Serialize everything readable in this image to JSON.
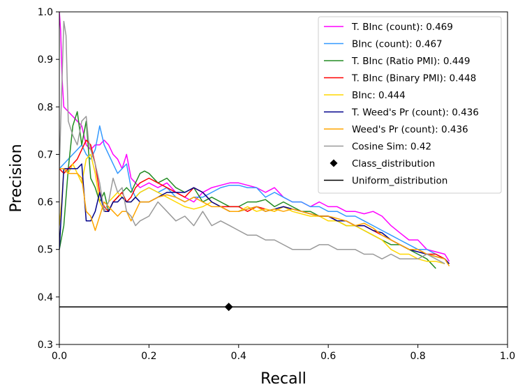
{
  "chart_data": {
    "type": "line",
    "title": "",
    "xlabel": "Recall",
    "ylabel": "Precision",
    "xlim": [
      0.0,
      1.0
    ],
    "ylim": [
      0.3,
      1.0
    ],
    "xticks": [
      "0.0",
      "0.2",
      "0.4",
      "0.6",
      "0.8",
      "1.0"
    ],
    "yticks": [
      "0.3",
      "0.4",
      "0.5",
      "0.6",
      "0.7",
      "0.8",
      "0.9",
      "1.0"
    ],
    "grid": false,
    "legend_position": "top-right",
    "series": [
      {
        "name": "T. BInc (count): 0.469",
        "color": "#ff00ff",
        "x": [
          0.0,
          0.003,
          0.006,
          0.01,
          0.02,
          0.03,
          0.04,
          0.05,
          0.06,
          0.07,
          0.08,
          0.09,
          0.1,
          0.11,
          0.12,
          0.13,
          0.14,
          0.15,
          0.16,
          0.17,
          0.18,
          0.2,
          0.22,
          0.24,
          0.26,
          0.28,
          0.3,
          0.32,
          0.34,
          0.36,
          0.38,
          0.4,
          0.42,
          0.44,
          0.46,
          0.48,
          0.5,
          0.52,
          0.54,
          0.56,
          0.58,
          0.6,
          0.62,
          0.64,
          0.66,
          0.68,
          0.7,
          0.72,
          0.74,
          0.76,
          0.78,
          0.8,
          0.82,
          0.84,
          0.86,
          0.87
        ],
        "y": [
          1.0,
          0.96,
          0.86,
          0.8,
          0.79,
          0.78,
          0.77,
          0.76,
          0.72,
          0.71,
          0.72,
          0.72,
          0.73,
          0.72,
          0.7,
          0.69,
          0.67,
          0.7,
          0.65,
          0.64,
          0.63,
          0.64,
          0.63,
          0.64,
          0.62,
          0.61,
          0.6,
          0.62,
          0.63,
          0.635,
          0.64,
          0.64,
          0.635,
          0.63,
          0.62,
          0.63,
          0.61,
          0.6,
          0.6,
          0.59,
          0.6,
          0.59,
          0.59,
          0.58,
          0.58,
          0.575,
          0.58,
          0.57,
          0.55,
          0.535,
          0.52,
          0.52,
          0.5,
          0.495,
          0.49,
          0.475
        ]
      },
      {
        "name": "BInc (count): 0.467",
        "color": "#3399ff",
        "x": [
          0.0,
          0.01,
          0.02,
          0.03,
          0.04,
          0.05,
          0.06,
          0.07,
          0.08,
          0.09,
          0.1,
          0.11,
          0.12,
          0.13,
          0.14,
          0.15,
          0.16,
          0.17,
          0.18,
          0.2,
          0.22,
          0.24,
          0.26,
          0.28,
          0.3,
          0.32,
          0.34,
          0.36,
          0.38,
          0.4,
          0.42,
          0.44,
          0.46,
          0.48,
          0.5,
          0.52,
          0.54,
          0.56,
          0.58,
          0.6,
          0.62,
          0.64,
          0.66,
          0.68,
          0.7,
          0.72,
          0.74,
          0.76,
          0.78,
          0.8,
          0.82,
          0.84,
          0.86,
          0.87
        ],
        "y": [
          0.67,
          0.68,
          0.69,
          0.7,
          0.71,
          0.72,
          0.7,
          0.69,
          0.71,
          0.76,
          0.72,
          0.7,
          0.68,
          0.66,
          0.67,
          0.68,
          0.63,
          0.61,
          0.62,
          0.63,
          0.62,
          0.63,
          0.61,
          0.6,
          0.61,
          0.61,
          0.62,
          0.63,
          0.635,
          0.635,
          0.63,
          0.63,
          0.61,
          0.62,
          0.61,
          0.6,
          0.6,
          0.59,
          0.59,
          0.58,
          0.58,
          0.57,
          0.57,
          0.56,
          0.55,
          0.54,
          0.53,
          0.52,
          0.51,
          0.5,
          0.5,
          0.49,
          0.48,
          0.47
        ]
      },
      {
        "name": "T. BInc (Ratio PMI): 0.449",
        "color": "#228b22",
        "x": [
          0.0,
          0.01,
          0.02,
          0.03,
          0.04,
          0.05,
          0.06,
          0.07,
          0.08,
          0.09,
          0.1,
          0.11,
          0.12,
          0.13,
          0.14,
          0.15,
          0.16,
          0.17,
          0.18,
          0.19,
          0.2,
          0.22,
          0.24,
          0.26,
          0.28,
          0.3,
          0.32,
          0.34,
          0.36,
          0.38,
          0.4,
          0.42,
          0.44,
          0.46,
          0.48,
          0.5,
          0.52,
          0.54,
          0.56,
          0.58,
          0.6,
          0.62,
          0.64,
          0.66,
          0.68,
          0.7,
          0.72,
          0.74,
          0.76,
          0.78,
          0.8,
          0.82,
          0.83,
          0.84
        ],
        "y": [
          0.5,
          0.55,
          0.67,
          0.76,
          0.79,
          0.72,
          0.77,
          0.65,
          0.63,
          0.6,
          0.62,
          0.58,
          0.6,
          0.61,
          0.62,
          0.63,
          0.62,
          0.64,
          0.66,
          0.665,
          0.66,
          0.64,
          0.65,
          0.63,
          0.62,
          0.63,
          0.6,
          0.61,
          0.6,
          0.59,
          0.59,
          0.6,
          0.6,
          0.605,
          0.59,
          0.6,
          0.59,
          0.58,
          0.58,
          0.57,
          0.57,
          0.56,
          0.55,
          0.55,
          0.54,
          0.53,
          0.52,
          0.51,
          0.51,
          0.5,
          0.49,
          0.48,
          0.47,
          0.46
        ]
      },
      {
        "name": "T. BInc (Binary PMI): 0.448",
        "color": "#ff0000",
        "x": [
          0.0,
          0.01,
          0.02,
          0.03,
          0.04,
          0.05,
          0.06,
          0.07,
          0.08,
          0.09,
          0.1,
          0.11,
          0.12,
          0.13,
          0.14,
          0.15,
          0.16,
          0.17,
          0.18,
          0.2,
          0.22,
          0.24,
          0.26,
          0.28,
          0.3,
          0.32,
          0.34,
          0.36,
          0.38,
          0.4,
          0.42,
          0.44,
          0.46,
          0.48,
          0.5,
          0.52,
          0.54,
          0.56,
          0.58,
          0.6,
          0.62,
          0.64,
          0.66,
          0.68,
          0.7,
          0.72,
          0.74,
          0.76,
          0.78,
          0.8,
          0.82,
          0.84,
          0.86,
          0.87
        ],
        "y": [
          0.67,
          0.66,
          0.67,
          0.68,
          0.69,
          0.71,
          0.73,
          0.72,
          0.68,
          0.62,
          0.59,
          0.58,
          0.6,
          0.61,
          0.62,
          0.6,
          0.61,
          0.63,
          0.64,
          0.65,
          0.64,
          0.63,
          0.62,
          0.61,
          0.63,
          0.62,
          0.6,
          0.59,
          0.59,
          0.59,
          0.58,
          0.59,
          0.585,
          0.58,
          0.59,
          0.585,
          0.58,
          0.575,
          0.57,
          0.57,
          0.56,
          0.56,
          0.55,
          0.55,
          0.54,
          0.53,
          0.52,
          0.51,
          0.5,
          0.5,
          0.49,
          0.49,
          0.48,
          0.47
        ]
      },
      {
        "name": "BInc: 0.444",
        "color": "#ffd700",
        "x": [
          0.0,
          0.005,
          0.01,
          0.02,
          0.03,
          0.04,
          0.05,
          0.06,
          0.07,
          0.08,
          0.09,
          0.1,
          0.11,
          0.12,
          0.13,
          0.14,
          0.15,
          0.16,
          0.17,
          0.18,
          0.2,
          0.22,
          0.24,
          0.26,
          0.28,
          0.3,
          0.32,
          0.34,
          0.36,
          0.38,
          0.4,
          0.42,
          0.44,
          0.46,
          0.48,
          0.5,
          0.52,
          0.54,
          0.56,
          0.58,
          0.6,
          0.62,
          0.64,
          0.66,
          0.68,
          0.7,
          0.72,
          0.74,
          0.76,
          0.78,
          0.8,
          0.82,
          0.84,
          0.86
        ],
        "y": [
          0.55,
          0.6,
          0.67,
          0.66,
          0.68,
          0.66,
          0.64,
          0.69,
          0.7,
          0.66,
          0.6,
          0.58,
          0.6,
          0.61,
          0.62,
          0.61,
          0.6,
          0.6,
          0.61,
          0.62,
          0.63,
          0.62,
          0.61,
          0.6,
          0.59,
          0.585,
          0.59,
          0.6,
          0.59,
          0.58,
          0.58,
          0.59,
          0.58,
          0.585,
          0.58,
          0.59,
          0.58,
          0.575,
          0.57,
          0.57,
          0.56,
          0.56,
          0.55,
          0.55,
          0.54,
          0.53,
          0.52,
          0.5,
          0.49,
          0.49,
          0.48,
          0.475,
          0.475,
          0.47
        ]
      },
      {
        "name": "T. Weed's Pr (count): 0.436",
        "color": "#00008b",
        "x": [
          0.0,
          0.01,
          0.02,
          0.03,
          0.04,
          0.05,
          0.06,
          0.07,
          0.08,
          0.09,
          0.1,
          0.11,
          0.12,
          0.13,
          0.14,
          0.15,
          0.16,
          0.17,
          0.18,
          0.2,
          0.22,
          0.24,
          0.26,
          0.28,
          0.3,
          0.32,
          0.34,
          0.36,
          0.38,
          0.4,
          0.42,
          0.44,
          0.46,
          0.48,
          0.5,
          0.52,
          0.54,
          0.56,
          0.58,
          0.6,
          0.62,
          0.64,
          0.66,
          0.68,
          0.7,
          0.72,
          0.74,
          0.76,
          0.78,
          0.8,
          0.82,
          0.84,
          0.86,
          0.87
        ],
        "y": [
          0.5,
          0.67,
          0.67,
          0.67,
          0.67,
          0.68,
          0.56,
          0.56,
          0.58,
          0.62,
          0.58,
          0.58,
          0.6,
          0.6,
          0.61,
          0.6,
          0.6,
          0.61,
          0.6,
          0.6,
          0.61,
          0.62,
          0.62,
          0.62,
          0.63,
          0.62,
          0.6,
          0.59,
          0.58,
          0.58,
          0.585,
          0.59,
          0.58,
          0.585,
          0.59,
          0.585,
          0.58,
          0.575,
          0.57,
          0.57,
          0.56,
          0.56,
          0.55,
          0.55,
          0.54,
          0.535,
          0.52,
          0.51,
          0.5,
          0.495,
          0.49,
          0.485,
          0.48,
          0.47
        ]
      },
      {
        "name": "Weed's Pr (count): 0.436",
        "color": "#ffa500",
        "x": [
          0.0,
          0.01,
          0.02,
          0.03,
          0.04,
          0.05,
          0.06,
          0.07,
          0.08,
          0.09,
          0.1,
          0.11,
          0.12,
          0.13,
          0.14,
          0.15,
          0.16,
          0.17,
          0.18,
          0.2,
          0.22,
          0.24,
          0.26,
          0.28,
          0.3,
          0.32,
          0.34,
          0.36,
          0.38,
          0.4,
          0.42,
          0.44,
          0.46,
          0.48,
          0.5,
          0.52,
          0.54,
          0.56,
          0.58,
          0.6,
          0.62,
          0.64,
          0.66,
          0.68,
          0.7,
          0.72,
          0.74,
          0.76,
          0.78,
          0.8,
          0.82,
          0.84,
          0.86,
          0.87
        ],
        "y": [
          0.67,
          0.67,
          0.66,
          0.66,
          0.66,
          0.65,
          0.58,
          0.57,
          0.54,
          0.57,
          0.6,
          0.59,
          0.58,
          0.57,
          0.58,
          0.58,
          0.56,
          0.58,
          0.6,
          0.6,
          0.61,
          0.615,
          0.61,
          0.6,
          0.61,
          0.6,
          0.59,
          0.59,
          0.58,
          0.58,
          0.585,
          0.59,
          0.58,
          0.585,
          0.58,
          0.585,
          0.58,
          0.575,
          0.57,
          0.57,
          0.565,
          0.56,
          0.55,
          0.555,
          0.545,
          0.53,
          0.52,
          0.51,
          0.5,
          0.5,
          0.49,
          0.485,
          0.48,
          0.465
        ]
      },
      {
        "name": "Cosine Sim: 0.42",
        "color": "#999999",
        "x": [
          0.0,
          0.01,
          0.015,
          0.02,
          0.03,
          0.04,
          0.05,
          0.06,
          0.065,
          0.07,
          0.08,
          0.09,
          0.1,
          0.11,
          0.12,
          0.13,
          0.14,
          0.15,
          0.16,
          0.17,
          0.18,
          0.2,
          0.22,
          0.24,
          0.26,
          0.28,
          0.3,
          0.32,
          0.34,
          0.36,
          0.38,
          0.4,
          0.42,
          0.44,
          0.46,
          0.48,
          0.5,
          0.52,
          0.54,
          0.56,
          0.58,
          0.6,
          0.62,
          0.64,
          0.66,
          0.68,
          0.7,
          0.72,
          0.74,
          0.76,
          0.78,
          0.8,
          0.82,
          0.84,
          0.86
        ],
        "y": [
          0.67,
          0.98,
          0.95,
          0.77,
          0.74,
          0.72,
          0.77,
          0.78,
          0.73,
          0.71,
          0.68,
          0.64,
          0.58,
          0.6,
          0.65,
          0.62,
          0.63,
          0.58,
          0.57,
          0.55,
          0.56,
          0.57,
          0.6,
          0.58,
          0.56,
          0.57,
          0.55,
          0.58,
          0.55,
          0.56,
          0.55,
          0.54,
          0.53,
          0.53,
          0.52,
          0.52,
          0.51,
          0.5,
          0.5,
          0.5,
          0.51,
          0.51,
          0.5,
          0.5,
          0.5,
          0.49,
          0.49,
          0.48,
          0.49,
          0.48,
          0.48,
          0.48,
          0.49,
          0.48,
          0.47
        ]
      }
    ],
    "class_distribution": {
      "name": "Class_distribution",
      "x": 0.378,
      "y": 0.379,
      "color": "#000000"
    },
    "uniform_distribution": {
      "name": "Uniform_distribution",
      "y": 0.379,
      "color": "#000000"
    }
  }
}
